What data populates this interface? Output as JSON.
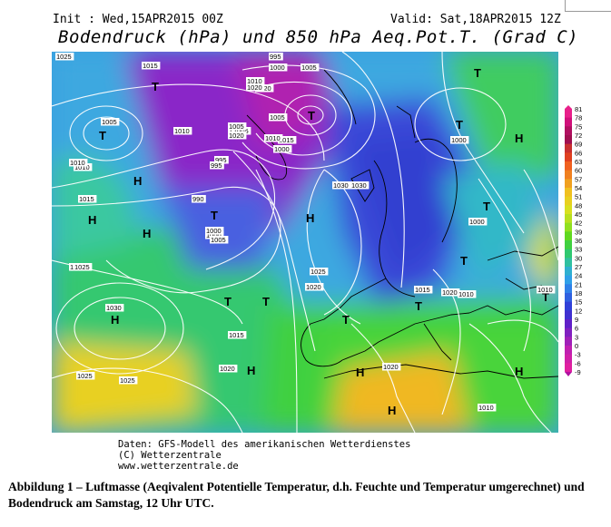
{
  "header": {
    "init": "Init : Wed,15APR2015 00Z",
    "valid": "Valid: Sat,18APR2015 12Z",
    "title": "Bodendruck (hPa) und 850 hPa Aeq.Pot.T. (Grad C)"
  },
  "map": {
    "pressure_labels": [
      "1025",
      "1015",
      "1005",
      "1010",
      "995",
      "1000",
      "1005",
      "1020",
      "1010",
      "1010",
      "1000",
      "1010",
      "1015",
      "1020",
      "1005",
      "1015",
      "1010",
      "1000",
      "995",
      "990",
      "1000",
      "1005",
      "1030",
      "1025",
      "1000",
      "1025",
      "1030",
      "1020",
      "1015",
      "1025",
      "1025",
      "1025",
      "1020",
      "1015",
      "1020",
      "1010",
      "1010",
      "1020",
      "1010",
      "1005",
      "1000",
      "1020",
      "995",
      "1005",
      "1030",
      "1000"
    ],
    "high_marker": "H",
    "low_marker": "T",
    "colors": {
      "cold": "#7a1fd0",
      "cool": "#3b3fd8",
      "mild": "#2aa7e6",
      "warm": "#29cc8a",
      "green": "#3fd23f",
      "hot": "#f0c020",
      "land_line": "#000000",
      "isobar": "#ffffff"
    }
  },
  "legend": {
    "ticks": [
      "81",
      "78",
      "75",
      "72",
      "69",
      "66",
      "63",
      "60",
      "57",
      "54",
      "51",
      "48",
      "45",
      "42",
      "39",
      "36",
      "33",
      "30",
      "27",
      "24",
      "21",
      "18",
      "15",
      "12",
      "9",
      "6",
      "3",
      "0",
      "-3",
      "-6",
      "-9"
    ],
    "colors": [
      "#e8208a",
      "#d0107a",
      "#b01060",
      "#a01050",
      "#c83030",
      "#e04020",
      "#f06020",
      "#f08020",
      "#f0a020",
      "#f0c020",
      "#e8d020",
      "#d8e020",
      "#b8e020",
      "#90e020",
      "#60d820",
      "#40d040",
      "#30c870",
      "#30c0a0",
      "#30b0d0",
      "#30a0e8",
      "#3080e8",
      "#3060e0",
      "#3040d8",
      "#4030d0",
      "#6020c8",
      "#8020c0",
      "#a020b8",
      "#c020b0",
      "#d020a8",
      "#e020a0",
      "#b010a0"
    ]
  },
  "credit": {
    "line1": "Daten: GFS-Modell des amerikanischen Wetterdienstes",
    "line2": "(C) Wetterzentrale",
    "line3": "www.wetterzentrale.de"
  },
  "caption": {
    "text": "Abbildung 1 – Luftmasse (Aeqivalent Potentielle Temperatur, d.h. Feuchte und Temperatur umgerechnet) und Bodendruck am Samstag, 12 Uhr UTC."
  }
}
